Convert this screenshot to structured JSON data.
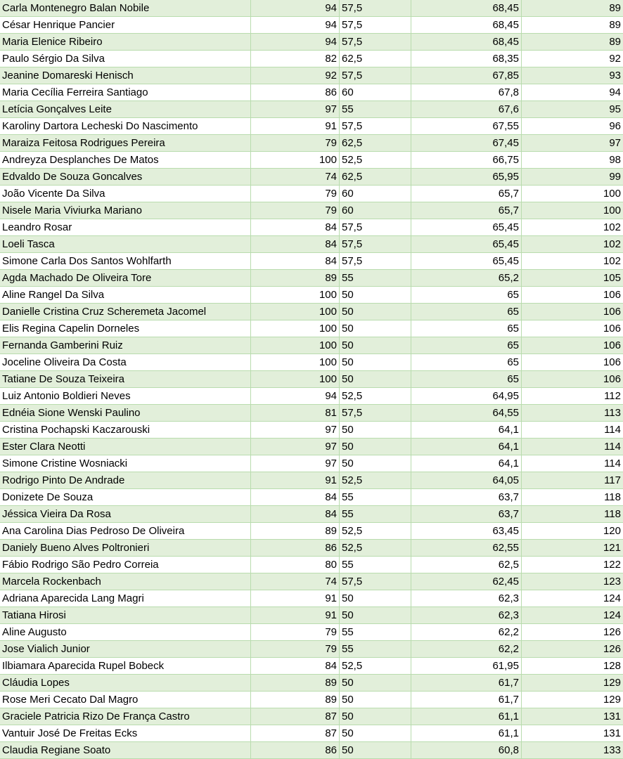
{
  "rows": [
    {
      "name": "Carla Montenegro Balan Nobile",
      "a": "94",
      "b": "57,5",
      "avg": "68,45",
      "rank": "89"
    },
    {
      "name": "César Henrique Pancier",
      "a": "94",
      "b": "57,5",
      "avg": "68,45",
      "rank": "89"
    },
    {
      "name": "Maria Elenice Ribeiro",
      "a": "94",
      "b": "57,5",
      "avg": "68,45",
      "rank": "89"
    },
    {
      "name": "Paulo Sérgio Da Silva",
      "a": "82",
      "b": "62,5",
      "avg": "68,35",
      "rank": "92"
    },
    {
      "name": "Jeanine Domareski Henisch",
      "a": "92",
      "b": "57,5",
      "avg": "67,85",
      "rank": "93"
    },
    {
      "name": "Maria Cecília Ferreira Santiago",
      "a": "86",
      "b": "60",
      "avg": "67,8",
      "rank": "94"
    },
    {
      "name": "Letícia Gonçalves Leite",
      "a": "97",
      "b": "55",
      "avg": "67,6",
      "rank": "95"
    },
    {
      "name": "Karoliny Dartora Lecheski Do Nascimento",
      "a": "91",
      "b": "57,5",
      "avg": "67,55",
      "rank": "96"
    },
    {
      "name": "Maraiza Feitosa Rodrigues Pereira",
      "a": "79",
      "b": "62,5",
      "avg": "67,45",
      "rank": "97"
    },
    {
      "name": "Andreyza Desplanches De Matos",
      "a": "100",
      "b": "52,5",
      "avg": "66,75",
      "rank": "98"
    },
    {
      "name": "Edvaldo De Souza Goncalves",
      "a": "74",
      "b": "62,5",
      "avg": "65,95",
      "rank": "99"
    },
    {
      "name": "João Vicente Da Silva",
      "a": "79",
      "b": "60",
      "avg": "65,7",
      "rank": "100"
    },
    {
      "name": "Nisele Maria Viviurka Mariano",
      "a": "79",
      "b": "60",
      "avg": "65,7",
      "rank": "100"
    },
    {
      "name": "Leandro Rosar",
      "a": "84",
      "b": "57,5",
      "avg": "65,45",
      "rank": "102"
    },
    {
      "name": "Loeli Tasca",
      "a": "84",
      "b": "57,5",
      "avg": "65,45",
      "rank": "102"
    },
    {
      "name": "Simone Carla Dos Santos Wohlfarth",
      "a": "84",
      "b": "57,5",
      "avg": "65,45",
      "rank": "102"
    },
    {
      "name": "Agda Machado De Oliveira Tore",
      "a": "89",
      "b": "55",
      "avg": "65,2",
      "rank": "105"
    },
    {
      "name": "Aline Rangel Da Silva",
      "a": "100",
      "b": "50",
      "avg": "65",
      "rank": "106"
    },
    {
      "name": "Danielle Cristina Cruz Scheremeta Jacomel",
      "a": "100",
      "b": "50",
      "avg": "65",
      "rank": "106"
    },
    {
      "name": "Elis Regina Capelin Dorneles",
      "a": "100",
      "b": "50",
      "avg": "65",
      "rank": "106"
    },
    {
      "name": "Fernanda Gamberini Ruiz",
      "a": "100",
      "b": "50",
      "avg": "65",
      "rank": "106"
    },
    {
      "name": "Joceline Oliveira Da Costa",
      "a": "100",
      "b": "50",
      "avg": "65",
      "rank": "106"
    },
    {
      "name": "Tatiane De Souza Teixeira",
      "a": "100",
      "b": "50",
      "avg": "65",
      "rank": "106"
    },
    {
      "name": "Luiz Antonio Boldieri Neves",
      "a": "94",
      "b": "52,5",
      "avg": "64,95",
      "rank": "112"
    },
    {
      "name": "Ednéia Sione Wenski Paulino",
      "a": "81",
      "b": "57,5",
      "avg": "64,55",
      "rank": "113"
    },
    {
      "name": "Cristina Pochapski Kaczarouski",
      "a": "97",
      "b": "50",
      "avg": "64,1",
      "rank": "114"
    },
    {
      "name": "Ester Clara Neotti",
      "a": "97",
      "b": "50",
      "avg": "64,1",
      "rank": "114"
    },
    {
      "name": "Simone Cristine Wosniacki",
      "a": "97",
      "b": "50",
      "avg": "64,1",
      "rank": "114"
    },
    {
      "name": "Rodrigo Pinto De Andrade",
      "a": "91",
      "b": "52,5",
      "avg": "64,05",
      "rank": "117"
    },
    {
      "name": "Donizete De Souza",
      "a": "84",
      "b": "55",
      "avg": "63,7",
      "rank": "118"
    },
    {
      "name": "Jéssica Vieira Da Rosa",
      "a": "84",
      "b": "55",
      "avg": "63,7",
      "rank": "118"
    },
    {
      "name": "Ana Carolina Dias Pedroso De Oliveira",
      "a": "89",
      "b": "52,5",
      "avg": "63,45",
      "rank": "120"
    },
    {
      "name": "Daniely Bueno Alves Poltronieri",
      "a": "86",
      "b": "52,5",
      "avg": "62,55",
      "rank": "121"
    },
    {
      "name": "Fábio Rodrigo São Pedro Correia",
      "a": "80",
      "b": "55",
      "avg": "62,5",
      "rank": "122"
    },
    {
      "name": "Marcela Rockenbach",
      "a": "74",
      "b": "57,5",
      "avg": "62,45",
      "rank": "123"
    },
    {
      "name": "Adriana Aparecida Lang Magri",
      "a": "91",
      "b": "50",
      "avg": "62,3",
      "rank": "124"
    },
    {
      "name": "Tatiana Hirosi",
      "a": "91",
      "b": "50",
      "avg": "62,3",
      "rank": "124"
    },
    {
      "name": "Aline Augusto",
      "a": "79",
      "b": "55",
      "avg": "62,2",
      "rank": "126"
    },
    {
      "name": "Jose Vialich Junior",
      "a": "79",
      "b": "55",
      "avg": "62,2",
      "rank": "126"
    },
    {
      "name": "Ilbiamara Aparecida Rupel Bobeck",
      "a": "84",
      "b": "52,5",
      "avg": "61,95",
      "rank": "128"
    },
    {
      "name": "Cláudia Lopes",
      "a": "89",
      "b": "50",
      "avg": "61,7",
      "rank": "129"
    },
    {
      "name": "Rose Meri Cecato Dal Magro",
      "a": "89",
      "b": "50",
      "avg": "61,7",
      "rank": "129"
    },
    {
      "name": "Graciele Patricia Rizo De França Castro",
      "a": "87",
      "b": "50",
      "avg": "61,1",
      "rank": "131"
    },
    {
      "name": "Vantuir José De Freitas Ecks",
      "a": "87",
      "b": "50",
      "avg": "61,1",
      "rank": "131"
    },
    {
      "name": "Claudia Regiane Soato",
      "a": "86",
      "b": "50",
      "avg": "60,8",
      "rank": "133"
    }
  ],
  "colors": {
    "band": "#e2efda",
    "gridline": "#b9dcae",
    "text": "#000000"
  }
}
